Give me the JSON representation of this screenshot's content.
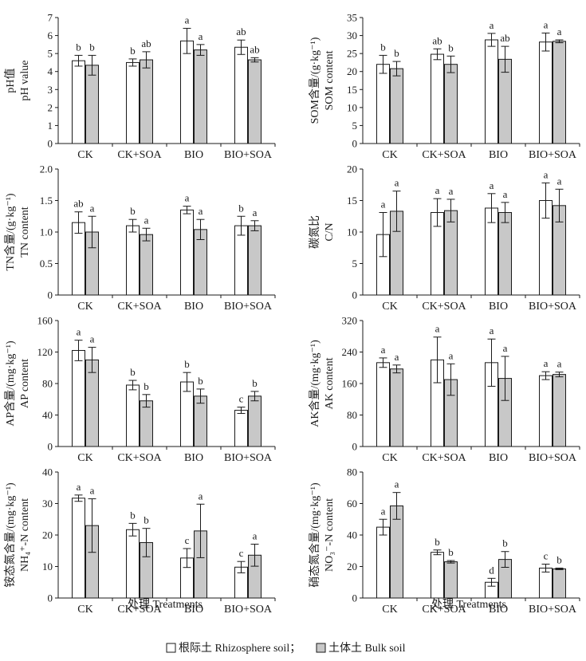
{
  "legend": {
    "items": [
      {
        "label": "根际土 Rhizosphere soil；",
        "color": "#ffffff"
      },
      {
        "label": "土体土 Bulk soil",
        "color": "#c8c8c8"
      }
    ]
  },
  "x_title": "处理 Treatments",
  "chart_data": [
    {
      "type": "bar",
      "id": "ph",
      "title": "",
      "ylabel_lines": [
        "pH值",
        "pH value"
      ],
      "categories": [
        "CK",
        "CK+SOA",
        "BIO",
        "BIO+SOA"
      ],
      "ylim": [
        0,
        7
      ],
      "yticks": [
        0,
        1,
        2,
        3,
        4,
        5,
        6,
        7
      ],
      "series": [
        {
          "name": "Rhizosphere soil",
          "values": [
            4.6,
            4.5,
            5.7,
            5.35
          ],
          "errors": [
            0.3,
            0.2,
            0.7,
            0.4
          ],
          "letters": [
            "b",
            "b",
            "a",
            "ab"
          ]
        },
        {
          "name": "Bulk soil",
          "values": [
            4.35,
            4.65,
            5.2,
            4.65
          ],
          "errors": [
            0.55,
            0.45,
            0.3,
            0.12
          ],
          "letters": [
            "b",
            "ab",
            "a",
            "ab"
          ]
        }
      ]
    },
    {
      "type": "bar",
      "id": "som",
      "title": "",
      "ylabel_lines": [
        "SOM含量/(g·kg⁻¹)",
        "SOM content"
      ],
      "categories": [
        "CK",
        "CK+SOA",
        "BIO",
        "BIO+SOA"
      ],
      "ylim": [
        0,
        35
      ],
      "yticks": [
        0,
        5,
        10,
        15,
        20,
        25,
        30,
        35
      ],
      "series": [
        {
          "name": "Rhizosphere soil",
          "values": [
            22,
            24.8,
            28.8,
            28.2
          ],
          "errors": [
            2.5,
            1.5,
            1.8,
            2.5
          ],
          "letters": [
            "b",
            "ab",
            "a",
            "a"
          ]
        },
        {
          "name": "Bulk soil",
          "values": [
            20.8,
            22,
            23.4,
            28.4
          ],
          "errors": [
            2.0,
            2.3,
            3.6,
            0.4
          ],
          "letters": [
            "b",
            "b",
            "ab",
            "a"
          ]
        }
      ]
    },
    {
      "type": "bar",
      "id": "tn",
      "title": "",
      "ylabel_lines": [
        "TN含量/(g·kg⁻¹)",
        "TN content"
      ],
      "categories": [
        "CK",
        "CK+SOA",
        "BIO",
        "BIO+SOA"
      ],
      "ylim": [
        0,
        2.0
      ],
      "yticks": [
        0,
        0.5,
        1.0,
        1.5,
        2.0
      ],
      "ytick_labels": [
        "0",
        "0.5",
        "1.0",
        "1.5",
        "2.0"
      ],
      "series": [
        {
          "name": "Rhizosphere soil",
          "values": [
            1.15,
            1.1,
            1.35,
            1.1
          ],
          "errors": [
            0.17,
            0.1,
            0.06,
            0.15
          ],
          "letters": [
            "ab",
            "b",
            "a",
            "b"
          ]
        },
        {
          "name": "Bulk soil",
          "values": [
            1.0,
            0.96,
            1.04,
            1.1
          ],
          "errors": [
            0.25,
            0.1,
            0.16,
            0.08
          ],
          "letters": [
            "a",
            "a",
            "a",
            "a"
          ]
        }
      ]
    },
    {
      "type": "bar",
      "id": "cn",
      "title": "",
      "ylabel_lines": [
        "碳氮比",
        "C/N"
      ],
      "categories": [
        "CK",
        "CK+SOA",
        "BIO",
        "BIO+SOA"
      ],
      "ylim": [
        0,
        20
      ],
      "yticks": [
        0,
        5,
        10,
        15,
        20
      ],
      "series": [
        {
          "name": "Rhizosphere soil",
          "values": [
            9.6,
            13.1,
            13.8,
            15.0
          ],
          "errors": [
            3.5,
            2.2,
            2.3,
            2.8
          ],
          "letters": [
            "a",
            "a",
            "a",
            "a"
          ]
        },
        {
          "name": "Bulk soil",
          "values": [
            13.3,
            13.4,
            13.1,
            14.2
          ],
          "errors": [
            3.2,
            1.8,
            1.6,
            2.6
          ],
          "letters": [
            "a",
            "a",
            "a",
            "a"
          ]
        }
      ]
    },
    {
      "type": "bar",
      "id": "ap",
      "title": "",
      "ylabel_lines": [
        "AP含量/(mg·kg⁻¹)",
        "AP content"
      ],
      "categories": [
        "CK",
        "CK+SOA",
        "BIO",
        "BIO+SOA"
      ],
      "ylim": [
        0,
        160
      ],
      "yticks": [
        0,
        40,
        80,
        120,
        160
      ],
      "series": [
        {
          "name": "Rhizosphere soil",
          "values": [
            122,
            78,
            82,
            46
          ],
          "errors": [
            13,
            6,
            12,
            4
          ],
          "letters": [
            "a",
            "b",
            "b",
            "c"
          ]
        },
        {
          "name": "Bulk soil",
          "values": [
            110,
            58,
            64,
            64
          ],
          "errors": [
            16,
            8,
            9,
            6
          ],
          "letters": [
            "a",
            "b",
            "b",
            "b"
          ]
        }
      ]
    },
    {
      "type": "bar",
      "id": "ak",
      "title": "",
      "ylabel_lines": [
        "AK含量/(mg·kg⁻¹)",
        "AK content"
      ],
      "categories": [
        "CK",
        "CK+SOA",
        "BIO",
        "BIO+SOA"
      ],
      "ylim": [
        0,
        320
      ],
      "yticks": [
        0,
        80,
        160,
        240,
        320
      ],
      "series": [
        {
          "name": "Rhizosphere soil",
          "values": [
            213,
            220,
            213,
            180
          ],
          "errors": [
            12,
            58,
            60,
            10
          ],
          "letters": [
            "a",
            "a",
            "a",
            "a"
          ]
        },
        {
          "name": "Bulk soil",
          "values": [
            197,
            170,
            173,
            183
          ],
          "errors": [
            10,
            40,
            56,
            6
          ],
          "letters": [
            "a",
            "a",
            "a",
            "a"
          ]
        }
      ]
    },
    {
      "type": "bar",
      "id": "nh4",
      "title": "",
      "ylabel_lines": [
        "铵态氮含量/(mg·kg⁻¹)",
        "NH₄⁺-N content"
      ],
      "categories": [
        "CK",
        "CK+SOA",
        "BIO",
        "BIO+SOA"
      ],
      "ylim": [
        0,
        40
      ],
      "yticks": [
        0,
        10,
        20,
        30,
        40
      ],
      "series": [
        {
          "name": "Rhizosphere soil",
          "values": [
            31.7,
            21.7,
            12.7,
            9.8
          ],
          "errors": [
            1.0,
            2.0,
            3.0,
            1.8
          ],
          "letters": [
            "a",
            "b",
            "c",
            "c"
          ]
        },
        {
          "name": "Bulk soil",
          "values": [
            23.0,
            17.6,
            21.3,
            13.6
          ],
          "errors": [
            8.5,
            4.5,
            8.5,
            3.5
          ],
          "letters": [
            "a",
            "b",
            "a",
            "a"
          ]
        }
      ]
    },
    {
      "type": "bar",
      "id": "no3",
      "title": "",
      "ylabel_lines": [
        "硝态氮含量/(mg·kg⁻¹)",
        "NO₃⁻-N content"
      ],
      "categories": [
        "CK",
        "CK+SOA",
        "BIO",
        "BIO+SOA"
      ],
      "ylim": [
        0,
        80
      ],
      "yticks": [
        0,
        20,
        40,
        60,
        80
      ],
      "series": [
        {
          "name": "Rhizosphere soil",
          "values": [
            45,
            29,
            10,
            19
          ],
          "errors": [
            5,
            1.5,
            2.5,
            2.5
          ],
          "letters": [
            "a",
            "b",
            "d",
            "c"
          ]
        },
        {
          "name": "Bulk soil",
          "values": [
            58.5,
            23,
            24.5,
            18.5
          ],
          "errors": [
            8.5,
            0.8,
            5,
            0.5
          ],
          "letters": [
            "a",
            "b",
            "b",
            "b"
          ]
        }
      ]
    }
  ]
}
